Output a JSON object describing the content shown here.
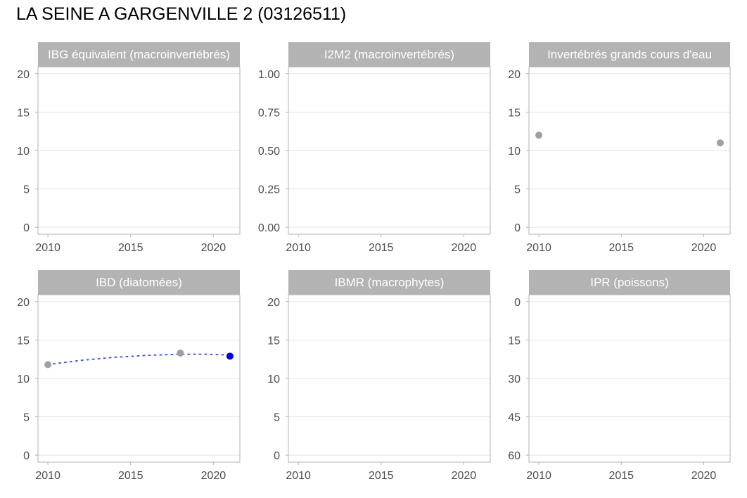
{
  "page": {
    "title": "LA SEINE A GARGENVILLE 2 (03126511)"
  },
  "colors": {
    "strip": "#b3b3b3",
    "panel_border": "#b3b3b3",
    "grid": "#e5e5e5",
    "point_grey": "#a0a0a0",
    "point_last": "#0000dd",
    "trend_line": "#3b5bdb"
  },
  "chart_data": [
    {
      "type": "scatter",
      "title": "IBG équivalent (macroinvertébrés)",
      "xlim": [
        2009.4,
        2021.6
      ],
      "ylim": [
        -0.9,
        20.9
      ],
      "xticks": [
        2010,
        2015,
        2020
      ],
      "yticks": [
        0,
        5,
        10,
        15,
        20
      ],
      "y_reversed": false,
      "points": [],
      "trend": []
    },
    {
      "type": "scatter",
      "title": "I2M2 (macroinvertébrés)",
      "xlim": [
        2009.4,
        2021.6
      ],
      "ylim": [
        -0.045,
        1.045
      ],
      "xticks": [
        2010,
        2015,
        2020
      ],
      "yticks": [
        "0.00",
        "0.25",
        "0.50",
        "0.75",
        "1.00"
      ],
      "y_reversed": false,
      "points": [],
      "trend": []
    },
    {
      "type": "scatter",
      "title": "Invertébrés grands cours d'eau",
      "xlim": [
        2009.4,
        2021.6
      ],
      "ylim": [
        -0.9,
        20.9
      ],
      "xticks": [
        2010,
        2015,
        2020
      ],
      "yticks": [
        0,
        5,
        10,
        15,
        20
      ],
      "y_reversed": false,
      "points": [
        {
          "x": 2010,
          "y": 12,
          "highlight": false
        },
        {
          "x": 2021,
          "y": 11,
          "highlight": false
        }
      ],
      "trend": []
    },
    {
      "type": "scatter",
      "title": "IBD (diatomées)",
      "xlim": [
        2009.4,
        2021.6
      ],
      "ylim": [
        -0.9,
        20.9
      ],
      "xticks": [
        2010,
        2015,
        2020
      ],
      "yticks": [
        0,
        5,
        10,
        15,
        20
      ],
      "y_reversed": false,
      "points": [
        {
          "x": 2010,
          "y": 11.8,
          "highlight": false
        },
        {
          "x": 2018,
          "y": 13.3,
          "highlight": false
        },
        {
          "x": 2021,
          "y": 12.9,
          "highlight": true
        }
      ],
      "trend": [
        {
          "x": 2010,
          "y": 11.8
        },
        {
          "x": 2012,
          "y": 12.35
        },
        {
          "x": 2014,
          "y": 12.75
        },
        {
          "x": 2016,
          "y": 13.0
        },
        {
          "x": 2018,
          "y": 13.15
        },
        {
          "x": 2019.5,
          "y": 13.15
        },
        {
          "x": 2021,
          "y": 13.05
        }
      ]
    },
    {
      "type": "scatter",
      "title": "IBMR (macrophytes)",
      "xlim": [
        2009.4,
        2021.6
      ],
      "ylim": [
        -0.9,
        20.9
      ],
      "xticks": [
        2010,
        2015,
        2020
      ],
      "yticks": [
        0,
        5,
        10,
        15,
        20
      ],
      "y_reversed": false,
      "points": [],
      "trend": []
    },
    {
      "type": "scatter",
      "title": "IPR (poissons)",
      "xlim": [
        2009.4,
        2021.6
      ],
      "ylim": [
        -2.7,
        62.7
      ],
      "xticks": [
        2010,
        2015,
        2020
      ],
      "yticks": [
        0,
        15,
        30,
        45,
        60
      ],
      "y_reversed": true,
      "points": [],
      "trend": []
    }
  ]
}
